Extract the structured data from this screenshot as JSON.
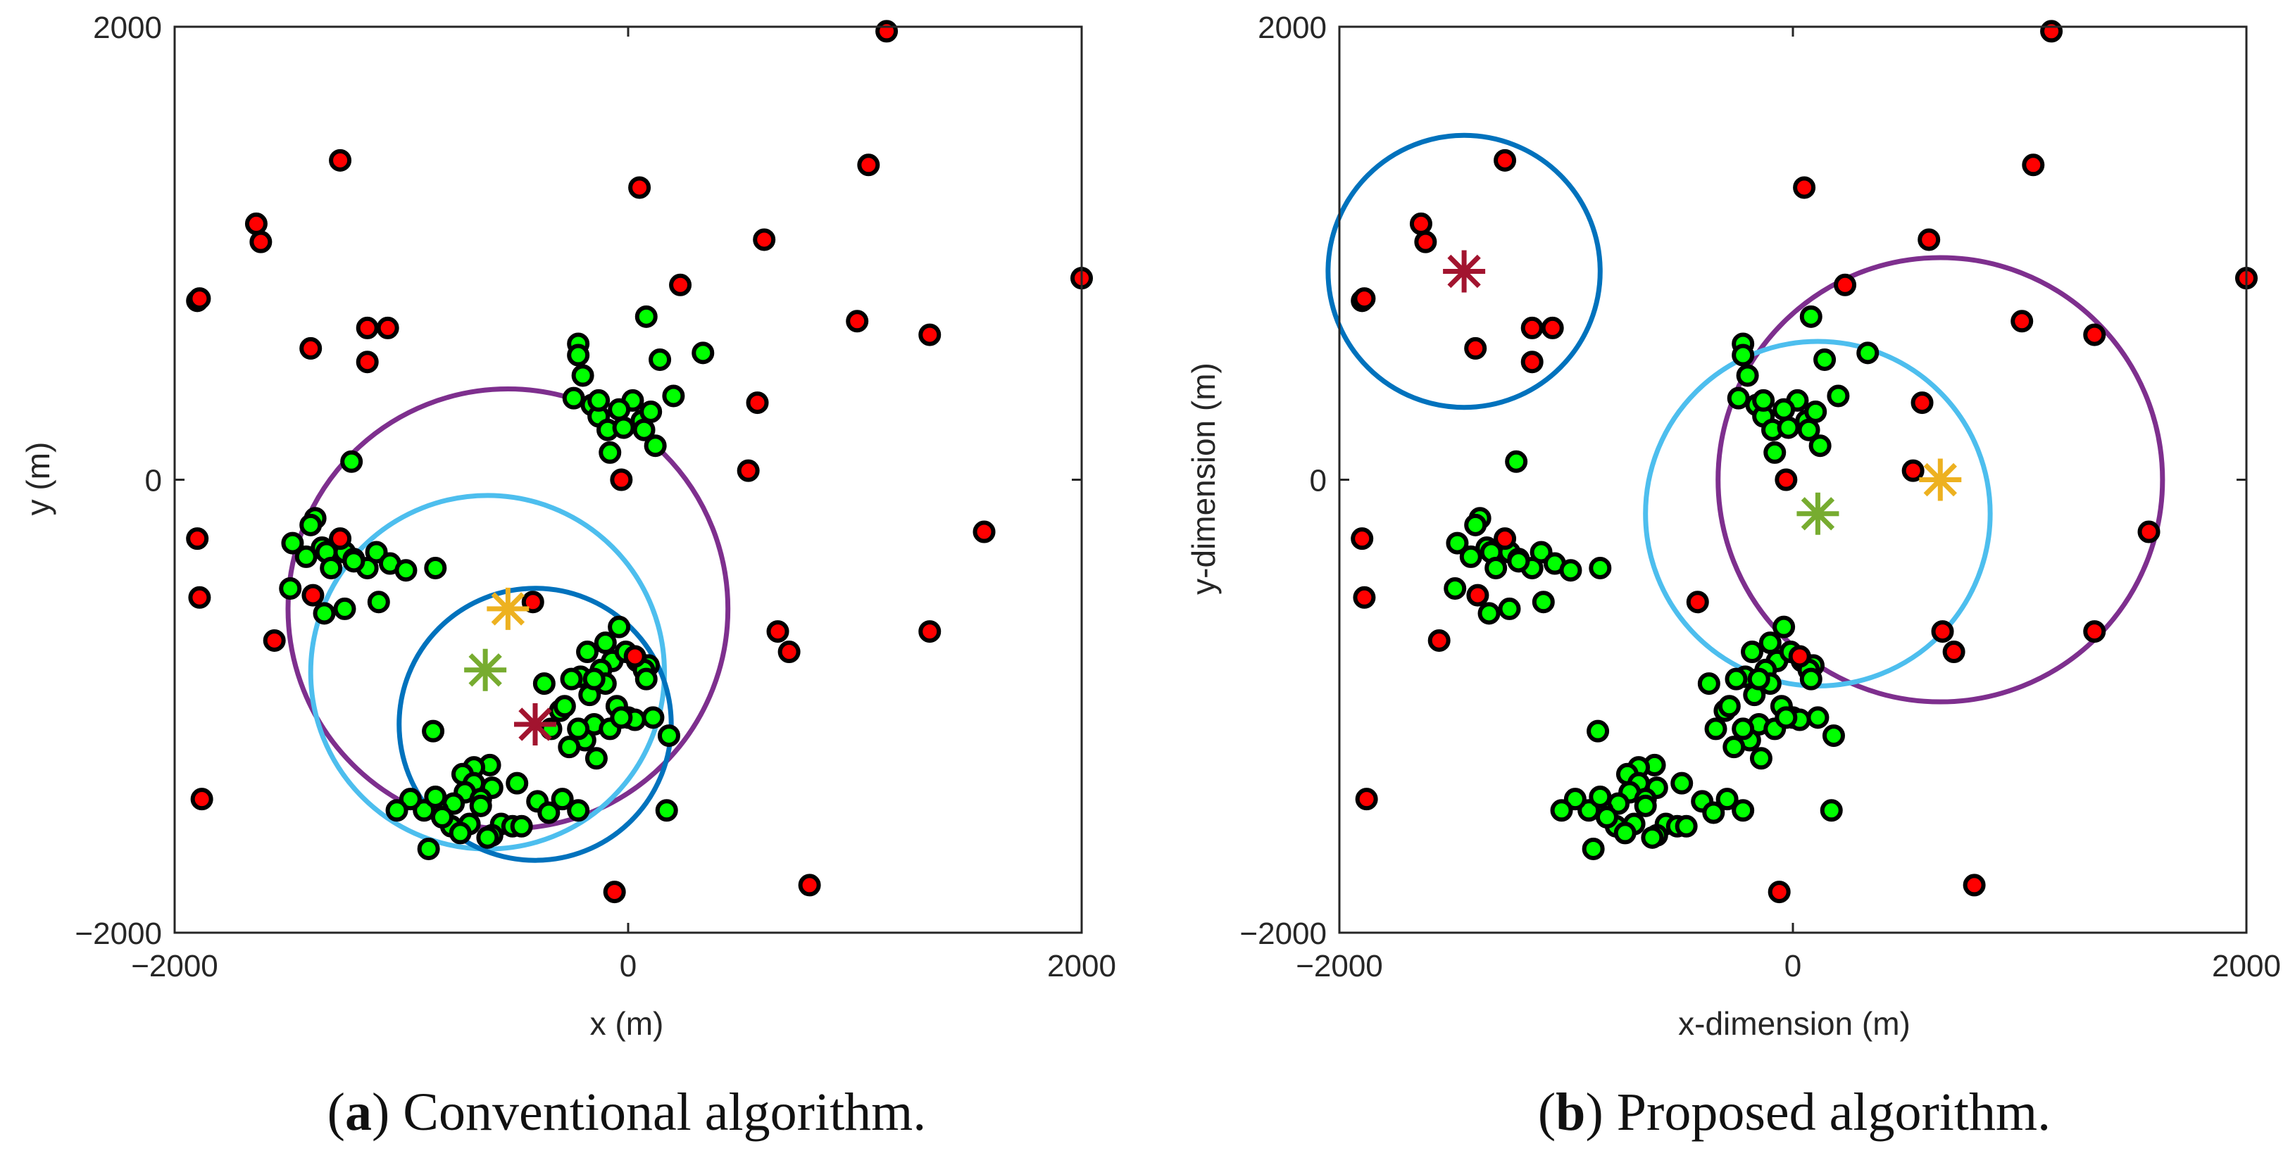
{
  "chart_data": [
    {
      "type": "scatter",
      "panel_id": "a",
      "caption_letter": "a",
      "caption_text": "Conventional algorithm.",
      "xlabel": "x (m)",
      "ylabel": "y (m)",
      "xlim": [
        -2000,
        2000
      ],
      "ylim": [
        -2000,
        2000
      ],
      "xticks": [
        -2000,
        0,
        2000
      ],
      "yticks": [
        -2000,
        0,
        2000
      ],
      "xtick_labels": [
        "−2000",
        "0",
        "2000"
      ],
      "ytick_labels": [
        "−2000",
        "0",
        "2000"
      ],
      "grid": false,
      "red_points": [
        [
          1140,
          1980
        ],
        [
          -1270,
          1410
        ],
        [
          1060,
          1390
        ],
        [
          50,
          1290
        ],
        [
          -1640,
          1130
        ],
        [
          -1620,
          1050
        ],
        [
          600,
          1060
        ],
        [
          2000,
          890
        ],
        [
          -1900,
          790
        ],
        [
          230,
          860
        ],
        [
          1010,
          700
        ],
        [
          1330,
          640
        ],
        [
          -1400,
          580
        ],
        [
          -1150,
          670
        ],
        [
          -1060,
          670
        ],
        [
          -1150,
          520
        ],
        [
          570,
          340
        ],
        [
          530,
          40
        ],
        [
          -30,
          0
        ],
        [
          -1900,
          -260
        ],
        [
          -1890,
          -520
        ],
        [
          -1560,
          -710
        ],
        [
          1570,
          -230
        ],
        [
          660,
          -670
        ],
        [
          710,
          -760
        ],
        [
          1330,
          -670
        ],
        [
          -1880,
          -1410
        ],
        [
          800,
          -1790
        ],
        [
          -60,
          -1820
        ],
        [
          -1270,
          -260
        ],
        [
          -1390,
          -510
        ],
        [
          -420,
          -540
        ],
        [
          30,
          -780
        ],
        [
          -1890,
          800
        ]
      ],
      "green_points": [
        [
          -220,
          600
        ],
        [
          -220,
          550
        ],
        [
          -200,
          460
        ],
        [
          -240,
          360
        ],
        [
          -160,
          330
        ],
        [
          -130,
          280
        ],
        [
          -90,
          220
        ],
        [
          -80,
          120
        ],
        [
          20,
          350
        ],
        [
          -40,
          310
        ],
        [
          60,
          260
        ],
        [
          100,
          300
        ],
        [
          70,
          220
        ],
        [
          120,
          150
        ],
        [
          140,
          530
        ],
        [
          200,
          370
        ],
        [
          330,
          560
        ],
        [
          -20,
          230
        ],
        [
          -130,
          350
        ],
        [
          80,
          720
        ],
        [
          -1220,
          80
        ],
        [
          -1380,
          -170
        ],
        [
          -1400,
          -200
        ],
        [
          -1480,
          -280
        ],
        [
          -1350,
          -300
        ],
        [
          -1420,
          -340
        ],
        [
          -1330,
          -320
        ],
        [
          -1250,
          -320
        ],
        [
          -1210,
          -350
        ],
        [
          -1150,
          -390
        ],
        [
          -1210,
          -360
        ],
        [
          -1110,
          -320
        ],
        [
          -1050,
          -370
        ],
        [
          -980,
          -400
        ],
        [
          -850,
          -390
        ],
        [
          -1490,
          -480
        ],
        [
          -1340,
          -590
        ],
        [
          -1250,
          -570
        ],
        [
          -1100,
          -540
        ],
        [
          -1310,
          -390
        ],
        [
          -40,
          -650
        ],
        [
          -100,
          -720
        ],
        [
          -180,
          -760
        ],
        [
          -70,
          -800
        ],
        [
          -120,
          -840
        ],
        [
          -210,
          -870
        ],
        [
          -100,
          -900
        ],
        [
          -170,
          -950
        ],
        [
          -300,
          -1020
        ],
        [
          -50,
          -1000
        ],
        [
          -10,
          -760
        ],
        [
          40,
          -800
        ],
        [
          90,
          -820
        ],
        [
          110,
          -1050
        ],
        [
          -150,
          -1080
        ],
        [
          -80,
          -1100
        ],
        [
          -190,
          -1150
        ],
        [
          -260,
          -1180
        ],
        [
          -370,
          -900
        ],
        [
          -340,
          -1100
        ],
        [
          -220,
          -1100
        ],
        [
          0,
          -1050
        ],
        [
          30,
          -1060
        ],
        [
          -250,
          -880
        ],
        [
          -150,
          -880
        ],
        [
          -280,
          -1000
        ],
        [
          -30,
          -1050
        ],
        [
          180,
          -1130
        ],
        [
          70,
          -840
        ],
        [
          80,
          -880
        ],
        [
          -610,
          -1260
        ],
        [
          -680,
          -1270
        ],
        [
          -730,
          -1300
        ],
        [
          -680,
          -1340
        ],
        [
          -600,
          -1360
        ],
        [
          -720,
          -1380
        ],
        [
          -650,
          -1410
        ],
        [
          -770,
          -1430
        ],
        [
          -650,
          -1440
        ],
        [
          -560,
          -1520
        ],
        [
          -700,
          -1520
        ],
        [
          -780,
          -1530
        ],
        [
          -840,
          -1460
        ],
        [
          -900,
          -1460
        ],
        [
          -820,
          -1490
        ],
        [
          -600,
          -1570
        ],
        [
          -510,
          -1530
        ],
        [
          -470,
          -1530
        ],
        [
          -850,
          -1400
        ],
        [
          -400,
          -1420
        ],
        [
          -290,
          -1410
        ],
        [
          -220,
          -1460
        ],
        [
          -860,
          -1110
        ],
        [
          -880,
          -1630
        ],
        [
          -740,
          -1560
        ],
        [
          -620,
          -1580
        ],
        [
          -960,
          -1410
        ],
        [
          -1020,
          -1460
        ],
        [
          170,
          -1460
        ],
        [
          -490,
          -1340
        ],
        [
          -140,
          -1230
        ],
        [
          -350,
          -1470
        ]
      ],
      "stars": [
        {
          "name": "yellow",
          "color": "#EDB120",
          "x": -530,
          "y": -570
        },
        {
          "name": "green",
          "color": "#77AC30",
          "x": -630,
          "y": -840
        },
        {
          "name": "dark-red",
          "color": "#A2142F",
          "x": -410,
          "y": -1080
        }
      ],
      "circles": [
        {
          "name": "purple",
          "color": "#7E2F8E",
          "cx": -530,
          "cy": -570,
          "r": 970
        },
        {
          "name": "light-blue",
          "color": "#4DBEEE",
          "cx": -620,
          "cy": -850,
          "r": 780
        },
        {
          "name": "dark-blue",
          "color": "#0072BD",
          "cx": -410,
          "cy": -1080,
          "r": 600
        }
      ]
    },
    {
      "type": "scatter",
      "panel_id": "b",
      "caption_letter": "b",
      "caption_text": "Proposed algorithm.",
      "xlabel": "x-dimension (m)",
      "ylabel": "y-dimension (m)",
      "xlim": [
        -2000,
        2000
      ],
      "ylim": [
        -2000,
        2000
      ],
      "xticks": [
        -2000,
        0,
        2000
      ],
      "yticks": [
        -2000,
        0,
        2000
      ],
      "xtick_labels": [
        "−2000",
        "0",
        "2000"
      ],
      "ytick_labels": [
        "−2000",
        "0",
        "2000"
      ],
      "grid": false,
      "red_points": [
        [
          1140,
          1980
        ],
        [
          -1270,
          1410
        ],
        [
          1060,
          1390
        ],
        [
          50,
          1290
        ],
        [
          -1640,
          1130
        ],
        [
          -1620,
          1050
        ],
        [
          600,
          1060
        ],
        [
          2000,
          890
        ],
        [
          -1900,
          790
        ],
        [
          230,
          860
        ],
        [
          1010,
          700
        ],
        [
          1330,
          640
        ],
        [
          -1400,
          580
        ],
        [
          -1150,
          670
        ],
        [
          -1060,
          670
        ],
        [
          -1150,
          520
        ],
        [
          570,
          340
        ],
        [
          530,
          40
        ],
        [
          -30,
          0
        ],
        [
          -1900,
          -260
        ],
        [
          -1890,
          -520
        ],
        [
          -1560,
          -710
        ],
        [
          1570,
          -230
        ],
        [
          660,
          -670
        ],
        [
          710,
          -760
        ],
        [
          1330,
          -670
        ],
        [
          -1880,
          -1410
        ],
        [
          800,
          -1790
        ],
        [
          -60,
          -1820
        ],
        [
          -1270,
          -260
        ],
        [
          -1390,
          -510
        ],
        [
          -420,
          -540
        ],
        [
          30,
          -780
        ],
        [
          -1890,
          800
        ]
      ],
      "green_points": [
        [
          -220,
          600
        ],
        [
          -220,
          550
        ],
        [
          -200,
          460
        ],
        [
          -240,
          360
        ],
        [
          -160,
          330
        ],
        [
          -130,
          280
        ],
        [
          -90,
          220
        ],
        [
          -80,
          120
        ],
        [
          20,
          350
        ],
        [
          -40,
          310
        ],
        [
          60,
          260
        ],
        [
          100,
          300
        ],
        [
          70,
          220
        ],
        [
          120,
          150
        ],
        [
          140,
          530
        ],
        [
          200,
          370
        ],
        [
          330,
          560
        ],
        [
          -20,
          230
        ],
        [
          -130,
          350
        ],
        [
          80,
          720
        ],
        [
          -1220,
          80
        ],
        [
          -1380,
          -170
        ],
        [
          -1400,
          -200
        ],
        [
          -1480,
          -280
        ],
        [
          -1350,
          -300
        ],
        [
          -1420,
          -340
        ],
        [
          -1330,
          -320
        ],
        [
          -1250,
          -320
        ],
        [
          -1210,
          -350
        ],
        [
          -1150,
          -390
        ],
        [
          -1210,
          -360
        ],
        [
          -1110,
          -320
        ],
        [
          -1050,
          -370
        ],
        [
          -980,
          -400
        ],
        [
          -850,
          -390
        ],
        [
          -1490,
          -480
        ],
        [
          -1340,
          -590
        ],
        [
          -1250,
          -570
        ],
        [
          -1100,
          -540
        ],
        [
          -1310,
          -390
        ],
        [
          -40,
          -650
        ],
        [
          -100,
          -720
        ],
        [
          -180,
          -760
        ],
        [
          -70,
          -800
        ],
        [
          -120,
          -840
        ],
        [
          -210,
          -870
        ],
        [
          -100,
          -900
        ],
        [
          -170,
          -950
        ],
        [
          -300,
          -1020
        ],
        [
          -50,
          -1000
        ],
        [
          -10,
          -760
        ],
        [
          40,
          -800
        ],
        [
          90,
          -820
        ],
        [
          110,
          -1050
        ],
        [
          -150,
          -1080
        ],
        [
          -80,
          -1100
        ],
        [
          -190,
          -1150
        ],
        [
          -260,
          -1180
        ],
        [
          -370,
          -900
        ],
        [
          -340,
          -1100
        ],
        [
          -220,
          -1100
        ],
        [
          0,
          -1050
        ],
        [
          30,
          -1060
        ],
        [
          -250,
          -880
        ],
        [
          -150,
          -880
        ],
        [
          -280,
          -1000
        ],
        [
          -30,
          -1050
        ],
        [
          180,
          -1130
        ],
        [
          70,
          -840
        ],
        [
          80,
          -880
        ],
        [
          -610,
          -1260
        ],
        [
          -680,
          -1270
        ],
        [
          -730,
          -1300
        ],
        [
          -680,
          -1340
        ],
        [
          -600,
          -1360
        ],
        [
          -720,
          -1380
        ],
        [
          -650,
          -1410
        ],
        [
          -770,
          -1430
        ],
        [
          -650,
          -1440
        ],
        [
          -560,
          -1520
        ],
        [
          -700,
          -1520
        ],
        [
          -780,
          -1530
        ],
        [
          -840,
          -1460
        ],
        [
          -900,
          -1460
        ],
        [
          -820,
          -1490
        ],
        [
          -600,
          -1570
        ],
        [
          -510,
          -1530
        ],
        [
          -470,
          -1530
        ],
        [
          -850,
          -1400
        ],
        [
          -400,
          -1420
        ],
        [
          -290,
          -1410
        ],
        [
          -220,
          -1460
        ],
        [
          -860,
          -1110
        ],
        [
          -880,
          -1630
        ],
        [
          -740,
          -1560
        ],
        [
          -620,
          -1580
        ],
        [
          -960,
          -1410
        ],
        [
          -1020,
          -1460
        ],
        [
          170,
          -1460
        ],
        [
          -490,
          -1340
        ],
        [
          -140,
          -1230
        ],
        [
          -350,
          -1470
        ]
      ],
      "stars": [
        {
          "name": "dark-red",
          "color": "#A2142F",
          "x": -1450,
          "y": 920
        },
        {
          "name": "yellow",
          "color": "#EDB120",
          "x": 650,
          "y": 0
        },
        {
          "name": "green",
          "color": "#77AC30",
          "x": 110,
          "y": -150
        }
      ],
      "circles": [
        {
          "name": "dark-blue",
          "color": "#0072BD",
          "cx": -1450,
          "cy": 920,
          "r": 600
        },
        {
          "name": "purple",
          "color": "#7E2F8E",
          "cx": 650,
          "cy": 0,
          "r": 980
        },
        {
          "name": "light-blue",
          "color": "#4DBEEE",
          "cx": 110,
          "cy": -150,
          "r": 760
        }
      ]
    }
  ]
}
